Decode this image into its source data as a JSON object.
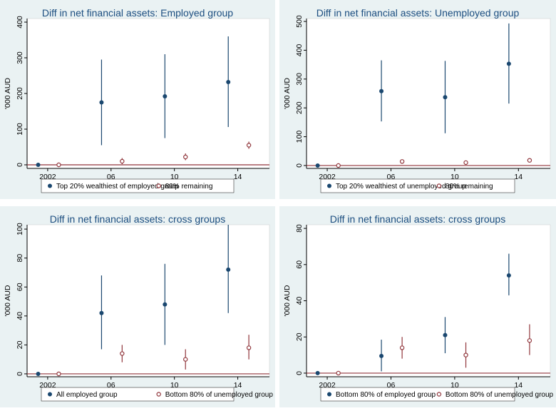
{
  "chart_data": [
    {
      "type": "scatter",
      "title": "Diff in net financial assets: Employed group",
      "ylabel": "'000 AUD",
      "ylim": [
        -10,
        410
      ],
      "yticks": [
        0,
        100,
        200,
        300,
        400
      ],
      "xlim": [
        2000.7,
        2016
      ],
      "xticks": [
        2002,
        2006,
        2010,
        2014
      ],
      "xtick_labels": [
        "2002",
        "06",
        "10",
        "14"
      ],
      "series": [
        {
          "name": "Top 20% wealthiest of employed group",
          "style": "filled",
          "x": [
            2001.4,
            2005.4,
            2009.4,
            2013.4
          ],
          "y": [
            0,
            175,
            192,
            232
          ],
          "lo": [
            0,
            55,
            75,
            106
          ],
          "hi": [
            0,
            295,
            310,
            360
          ]
        },
        {
          "name": "80% remaining",
          "style": "hollow",
          "x": [
            2002.7,
            2006.7,
            2010.7,
            2014.7
          ],
          "y": [
            0,
            10,
            22,
            55
          ],
          "lo": [
            0,
            2,
            13,
            45
          ],
          "hi": [
            0,
            19,
            32,
            65
          ]
        }
      ]
    },
    {
      "type": "scatter",
      "title": "Diff in net financial assets: Unemployed group",
      "ylabel": "'000 AUD",
      "ylim": [
        -10,
        510
      ],
      "yticks": [
        0,
        100,
        200,
        300,
        400,
        500
      ],
      "xlim": [
        2000.7,
        2016
      ],
      "xticks": [
        2002,
        2006,
        2010,
        2014
      ],
      "xtick_labels": [
        "2002",
        "06",
        "10",
        "14"
      ],
      "series": [
        {
          "name": "Top 20% wealthiest of unemployed group",
          "style": "filled",
          "x": [
            2001.4,
            2005.4,
            2009.4,
            2013.4
          ],
          "y": [
            0,
            258,
            237,
            353
          ],
          "lo": [
            0,
            153,
            112,
            215
          ],
          "hi": [
            0,
            365,
            363,
            493
          ]
        },
        {
          "name": "80% remaining",
          "style": "hollow",
          "x": [
            2002.7,
            2006.7,
            2010.7,
            2014.7
          ],
          "y": [
            0,
            14,
            10,
            18
          ],
          "lo": [
            0,
            10,
            6,
            13
          ],
          "hi": [
            0,
            18,
            14,
            23
          ]
        }
      ]
    },
    {
      "type": "scatter",
      "title": "Diff in net financial assets: cross groups",
      "ylabel": "'000 AUD",
      "ylim": [
        -2,
        103
      ],
      "yticks": [
        0,
        20,
        40,
        60,
        80,
        100
      ],
      "xlim": [
        2000.7,
        2016
      ],
      "xticks": [
        2002,
        2006,
        2010,
        2014
      ],
      "xtick_labels": [
        "2002",
        "06",
        "10",
        "14"
      ],
      "series": [
        {
          "name": "All employed group",
          "style": "filled",
          "x": [
            2001.4,
            2005.4,
            2009.4,
            2013.4
          ],
          "y": [
            0,
            42,
            48,
            72
          ],
          "lo": [
            0,
            17,
            20,
            42
          ],
          "hi": [
            0,
            68,
            76,
            103
          ]
        },
        {
          "name": "Bottom 80% of unemployed group",
          "style": "hollow",
          "x": [
            2002.7,
            2006.7,
            2010.7,
            2014.7
          ],
          "y": [
            0,
            14,
            10,
            18
          ],
          "lo": [
            0,
            8,
            3,
            10
          ],
          "hi": [
            0,
            20,
            17,
            27
          ]
        }
      ]
    },
    {
      "type": "scatter",
      "title": "Diff in net financial assets: cross groups",
      "ylabel": "'000 AUD",
      "ylim": [
        -2,
        82
      ],
      "yticks": [
        0,
        20,
        40,
        60,
        80
      ],
      "xlim": [
        2000.7,
        2016
      ],
      "xticks": [
        2002,
        2006,
        2010,
        2014
      ],
      "xtick_labels": [
        "2002",
        "06",
        "10",
        "14"
      ],
      "series": [
        {
          "name": "Bottom 80% of employed group",
          "style": "filled",
          "x": [
            2001.4,
            2005.4,
            2009.4,
            2013.4
          ],
          "y": [
            0,
            9.5,
            21,
            54
          ],
          "lo": [
            0,
            1,
            11,
            43
          ],
          "hi": [
            0,
            18.5,
            31,
            66
          ]
        },
        {
          "name": "Bottom 80% of unemployed group",
          "style": "hollow",
          "x": [
            2002.7,
            2006.7,
            2010.7,
            2014.7
          ],
          "y": [
            0,
            14,
            10,
            18
          ],
          "lo": [
            0,
            8,
            3,
            10
          ],
          "hi": [
            0,
            20,
            17,
            27
          ]
        }
      ]
    }
  ],
  "colors": {
    "panel_bg": "#eaf2f3",
    "plot_bg": "#ffffff",
    "title": "#1c4e80",
    "filled_marker": "#1a476f",
    "hollow_marker": "#90353b",
    "ci_filled": "#1a476f",
    "ci_hollow": "#90353b",
    "zero_line": "#90353b",
    "axis": "#000000"
  }
}
